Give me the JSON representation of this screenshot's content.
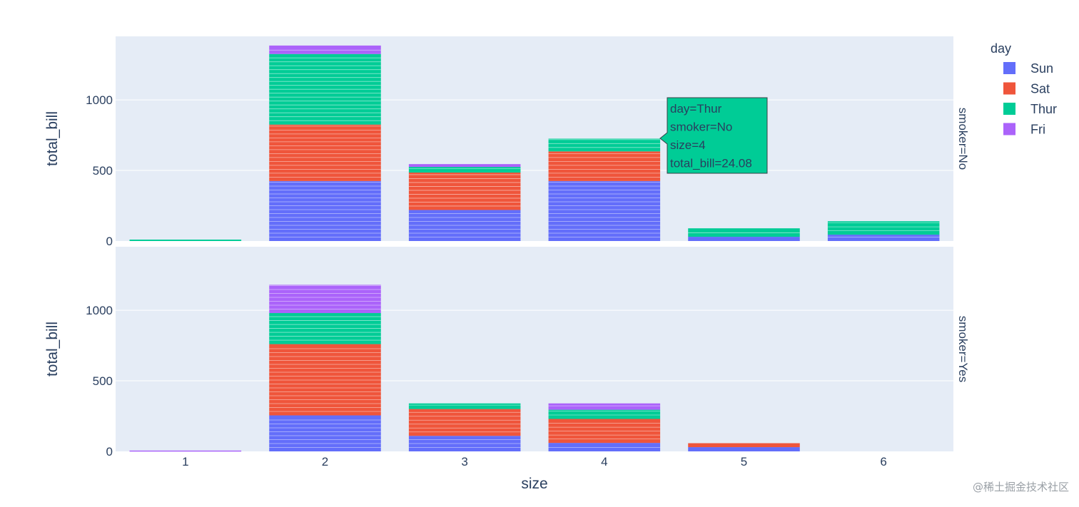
{
  "chart_data": {
    "type": "bar",
    "barmode": "stack",
    "categories": [
      "1",
      "2",
      "3",
      "4",
      "5",
      "6"
    ],
    "xlabel": "size",
    "ylabel": "total_bill",
    "ylim": [
      0,
      1450
    ],
    "yticks": [
      0,
      500,
      1000
    ],
    "grid": true,
    "legend": {
      "title": "day",
      "placement": "top-right"
    },
    "colors": {
      "Sun": "#636efa",
      "Sat": "#ef553b",
      "Thur": "#00cc96",
      "Fri": "#ab63fa"
    },
    "facets": [
      {
        "label": "smoker=No",
        "series": [
          {
            "name": "Sun",
            "values": [
              0,
              425,
              220,
              425,
              30,
              45
            ]
          },
          {
            "name": "Sat",
            "values": [
              0,
              400,
              265,
              210,
              0,
              0
            ]
          },
          {
            "name": "Thur",
            "values": [
              10,
              500,
              40,
              90,
              60,
              95
            ]
          },
          {
            "name": "Fri",
            "values": [
              0,
              60,
              20,
              0,
              0,
              0
            ]
          }
        ]
      },
      {
        "label": "smoker=Yes",
        "series": [
          {
            "name": "Sun",
            "values": [
              0,
              255,
              110,
              60,
              30,
              0
            ]
          },
          {
            "name": "Sat",
            "values": [
              0,
              505,
              190,
              170,
              28,
              0
            ]
          },
          {
            "name": "Thur",
            "values": [
              0,
              220,
              40,
              65,
              0,
              0
            ]
          },
          {
            "name": "Fri",
            "values": [
              6,
              200,
              0,
              45,
              0,
              0
            ]
          }
        ]
      }
    ],
    "hover": {
      "lines": [
        "day=Thur",
        "smoker=No",
        "size=4",
        "total_bill=24.08"
      ],
      "color": "#00cc96"
    }
  },
  "watermark": "@稀土掘金技术社区"
}
